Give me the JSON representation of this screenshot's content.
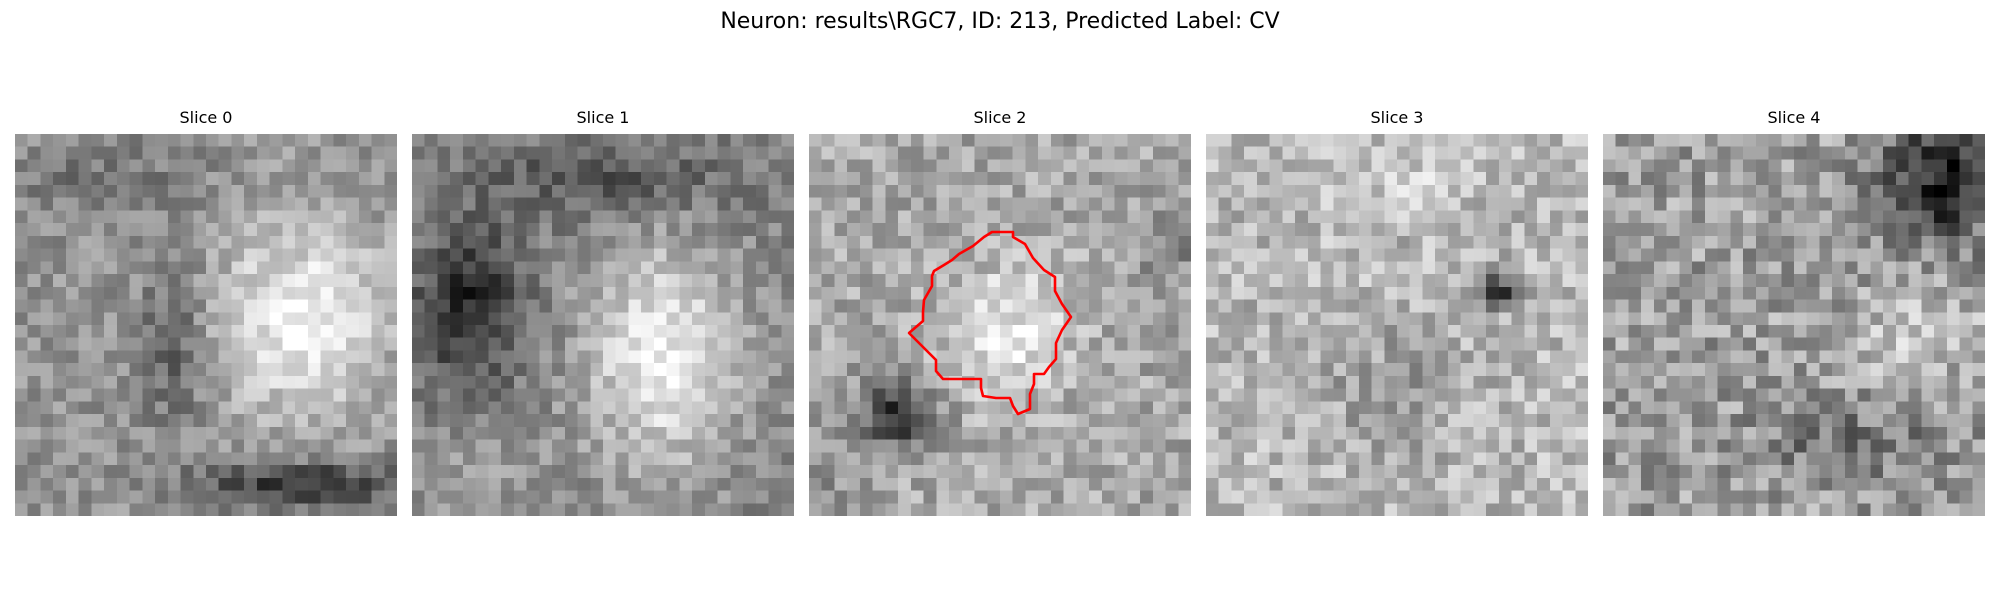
{
  "figure": {
    "suptitle": "Neuron: results\\RGC7, ID: 213, Predicted Label: CV"
  },
  "panels": [
    {
      "title": "Slice 0",
      "contour": false,
      "pattern": "slice0-bright-blob-right"
    },
    {
      "title": "Slice 1",
      "contour": false,
      "pattern": "slice1-bright-blob-center-dark-left"
    },
    {
      "title": "Slice 2",
      "contour": true,
      "pattern": "slice2-bright-blob-center-dark-bottom-left"
    },
    {
      "title": "Slice 3",
      "contour": false,
      "pattern": "slice3-light-noise-dark-spot"
    },
    {
      "title": "Slice 4",
      "contour": false,
      "pattern": "slice4-noise-dark-top-right"
    }
  ],
  "colors": {
    "contour": "#ff0000",
    "background": "#ffffff",
    "colormap": "gray"
  }
}
